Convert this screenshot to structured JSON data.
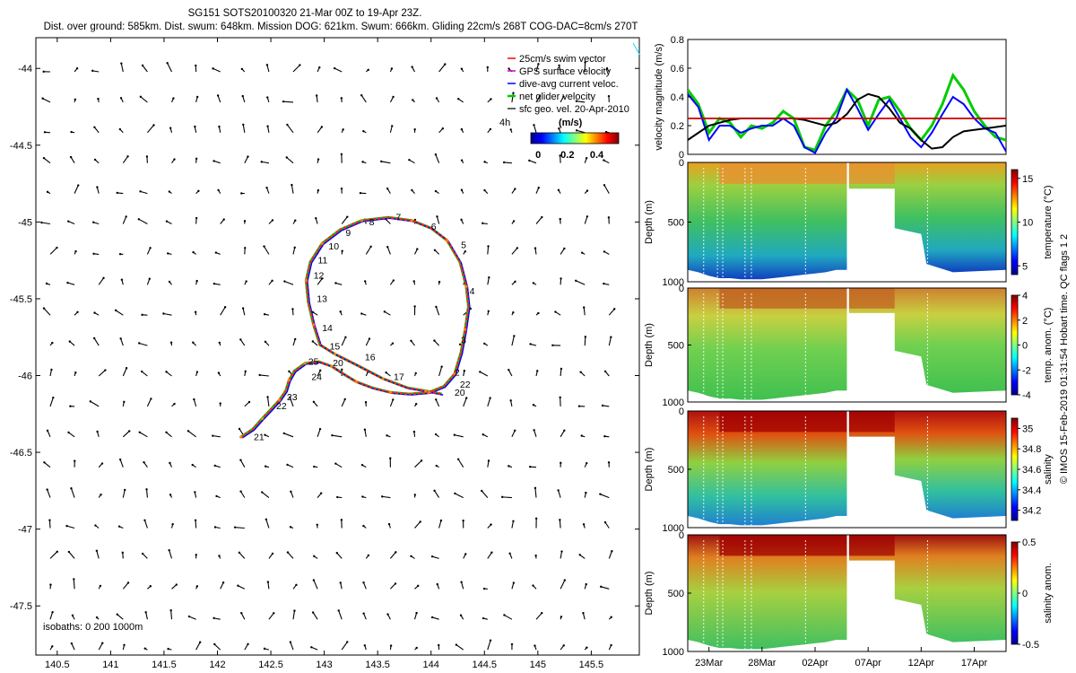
{
  "title": {
    "line1": "SG151 SOTS20100320 21-Mar 00Z to 19-Apr 23Z.",
    "line2": "Dist. over ground: 585km. Dist. swum: 648km. Mission DOG: 621km. Swum: 666km. Gliding 22cm/s 268T COG-DAC=8cm/s 270T"
  },
  "colors": {
    "swim_vector": "#ff0000",
    "gps_velocity": "#cc00cc",
    "dac_velocity": "#0000ff",
    "net_velocity": "#00cc00",
    "geo_velocity": "#000000",
    "track": "#ff2020",
    "speed_line": "#cc0000"
  },
  "chart_data": [
    {
      "type": "scatter",
      "name": "map",
      "xlim": [
        140.3,
        145.95
      ],
      "ylim": [
        -47.82,
        -43.8
      ],
      "xticks": [
        "140.5",
        "141",
        "141.5",
        "142",
        "142.5",
        "143",
        "143.5",
        "144",
        "144.5",
        "145",
        "145.5"
      ],
      "xtick_values": [
        140.5,
        141,
        141.5,
        142,
        142.5,
        143,
        143.5,
        144,
        144.5,
        145,
        145.5
      ],
      "yticks": [
        "-44",
        "-44.5",
        "-45",
        "-45.5",
        "-46",
        "-46.5",
        "-47",
        "-47.5"
      ],
      "ytick_values": [
        -44,
        -44.5,
        -45,
        -45.5,
        -46,
        -46.5,
        -47,
        -47.5
      ],
      "legend": {
        "swim": "25cm/s swim vector",
        "gps": "GPS surface velocity",
        "dac": "dive-avg current veloc.",
        "net": "net glider velocity",
        "geo": "sfc geo. vel. 20-Apr-2010"
      },
      "colorbar": {
        "label": "(m/s)",
        "ticks": [
          "0",
          "0.2",
          "0.4"
        ],
        "tick_values": [
          0,
          0.2,
          0.4
        ],
        "range": [
          -0.05,
          0.55
        ]
      },
      "scale_label": "4h",
      "isobath_label": "isobaths: 0   200  1000m",
      "track": [
        [
          142.22,
          -46.4
        ],
        [
          142.33,
          -46.35
        ],
        [
          142.42,
          -46.28
        ],
        [
          142.5,
          -46.22
        ],
        [
          142.58,
          -46.16
        ],
        [
          142.64,
          -46.1
        ],
        [
          142.67,
          -46.03
        ],
        [
          142.72,
          -45.97
        ],
        [
          142.82,
          -45.92
        ],
        [
          142.95,
          -45.91
        ],
        [
          143.07,
          -45.94
        ],
        [
          143.18,
          -45.99
        ],
        [
          143.3,
          -46.04
        ],
        [
          143.45,
          -46.08
        ],
        [
          143.62,
          -46.11
        ],
        [
          143.8,
          -46.12
        ],
        [
          143.98,
          -46.11
        ],
        [
          144.12,
          -46.07
        ],
        [
          144.22,
          -45.99
        ],
        [
          144.28,
          -45.85
        ],
        [
          144.32,
          -45.7
        ],
        [
          144.35,
          -45.55
        ],
        [
          144.33,
          -45.42
        ],
        [
          144.27,
          -45.26
        ],
        [
          144.15,
          -45.12
        ],
        [
          144.0,
          -45.04
        ],
        [
          143.82,
          -44.99
        ],
        [
          143.6,
          -44.97
        ],
        [
          143.35,
          -44.99
        ],
        [
          143.15,
          -45.05
        ],
        [
          142.98,
          -45.14
        ],
        [
          142.87,
          -45.26
        ],
        [
          142.83,
          -45.38
        ],
        [
          142.85,
          -45.52
        ],
        [
          142.9,
          -45.67
        ],
        [
          142.96,
          -45.8
        ],
        [
          143.1,
          -45.86
        ],
        [
          143.3,
          -45.93
        ],
        [
          143.55,
          -46.02
        ],
        [
          143.78,
          -46.08
        ],
        [
          143.95,
          -46.1
        ],
        [
          144.1,
          -46.12
        ]
      ],
      "waypoints": [
        {
          "label": "2",
          "x": 144.22,
          "y": -46.0
        },
        {
          "label": "3",
          "x": 144.28,
          "y": -45.79
        },
        {
          "label": "4",
          "x": 144.36,
          "y": -45.47
        },
        {
          "label": "5",
          "x": 144.28,
          "y": -45.17
        },
        {
          "label": "6",
          "x": 144.0,
          "y": -45.05
        },
        {
          "label": "7",
          "x": 143.67,
          "y": -44.99
        },
        {
          "label": "8",
          "x": 143.42,
          "y": -45.02
        },
        {
          "label": "9",
          "x": 143.2,
          "y": -45.09
        },
        {
          "label": "10",
          "x": 143.04,
          "y": -45.18
        },
        {
          "label": "11",
          "x": 142.94,
          "y": -45.27
        },
        {
          "label": "12",
          "x": 142.9,
          "y": -45.37
        },
        {
          "label": "13",
          "x": 142.93,
          "y": -45.52
        },
        {
          "label": "14",
          "x": 142.98,
          "y": -45.71
        },
        {
          "label": "15",
          "x": 143.05,
          "y": -45.83
        },
        {
          "label": "16",
          "x": 143.38,
          "y": -45.9
        },
        {
          "label": "17",
          "x": 143.65,
          "y": -46.03
        },
        {
          "label": "20",
          "x": 143.08,
          "y": -45.94
        },
        {
          "label": "21",
          "x": 142.34,
          "y": -46.42
        },
        {
          "label": "22",
          "x": 142.55,
          "y": -46.22
        },
        {
          "label": "22",
          "x": 144.27,
          "y": -46.08
        },
        {
          "label": "23",
          "x": 142.65,
          "y": -46.16
        },
        {
          "label": "24",
          "x": 142.88,
          "y": -46.03
        },
        {
          "label": "25",
          "x": 142.85,
          "y": -45.93
        },
        {
          "label": "20",
          "x": 144.22,
          "y": -46.13
        }
      ]
    },
    {
      "type": "line",
      "name": "velocity",
      "ylabel": "velocity magnitude (m/s)",
      "ylim": [
        0,
        0.8
      ],
      "yticks": [
        "0",
        "0.2",
        "0.4",
        "0.6",
        "0.8"
      ],
      "ytick_values": [
        0,
        0.2,
        0.4,
        0.6,
        0.8
      ],
      "x_days": [
        0,
        1,
        2,
        3,
        4,
        5,
        6,
        7,
        8,
        9,
        10,
        11,
        12,
        13,
        14,
        15,
        16,
        17,
        18,
        19,
        20,
        21,
        22,
        23,
        24,
        25,
        26,
        27,
        28,
        29,
        30
      ],
      "xlim_days": [
        0,
        30
      ],
      "horizontal_line": 0.25,
      "series": [
        {
          "name": "net glider velocity",
          "values": [
            0.45,
            0.35,
            0.15,
            0.25,
            0.22,
            0.12,
            0.2,
            0.18,
            0.22,
            0.3,
            0.25,
            0.05,
            0.03,
            0.2,
            0.3,
            0.45,
            0.38,
            0.2,
            0.38,
            0.4,
            0.3,
            0.18,
            0.1,
            0.2,
            0.35,
            0.55,
            0.45,
            0.3,
            0.2,
            0.12,
            0.1
          ]
        },
        {
          "name": "dive-avg current veloc.",
          "values": [
            0.42,
            0.33,
            0.1,
            0.2,
            0.2,
            0.15,
            0.18,
            0.2,
            0.2,
            0.25,
            0.2,
            0.05,
            0.01,
            0.15,
            0.25,
            0.45,
            0.32,
            0.17,
            0.28,
            0.38,
            0.25,
            0.12,
            0.05,
            0.15,
            0.28,
            0.4,
            0.35,
            0.25,
            0.18,
            0.15,
            0.02
          ]
        },
        {
          "name": "sfc geo. vel. 20-Apr-2010",
          "values": [
            0.1,
            0.15,
            0.2,
            0.22,
            0.24,
            0.25,
            0.25,
            0.25,
            0.25,
            0.25,
            0.25,
            0.24,
            0.22,
            0.2,
            0.22,
            0.28,
            0.38,
            0.42,
            0.4,
            0.32,
            0.22,
            0.18,
            0.1,
            0.04,
            0.05,
            0.12,
            0.16,
            0.17,
            0.18,
            0.19,
            0.2
          ]
        }
      ]
    },
    {
      "type": "heatmap",
      "name": "temperature",
      "ylabel": "Depth (m)",
      "yticks": [
        "0",
        "500",
        "1000"
      ],
      "ytick_values": [
        0,
        500,
        1000
      ],
      "ylim": [
        0,
        1000
      ],
      "colorbar_label": "temperature (°C)",
      "colorbar_ticks": [
        "15",
        "10",
        "5"
      ],
      "colorbar_tick_values": [
        15,
        10,
        5
      ],
      "colorbar_range": [
        4,
        16
      ]
    },
    {
      "type": "heatmap",
      "name": "temperature anomaly",
      "ylabel": "Depth (m)",
      "yticks": [
        "0",
        "500",
        "1000"
      ],
      "ytick_values": [
        0,
        500,
        1000
      ],
      "ylim": [
        0,
        1000
      ],
      "colorbar_label": "temp. anom. (°C)",
      "colorbar_ticks": [
        "4",
        "2",
        "0",
        "-2",
        "-4"
      ],
      "colorbar_tick_values": [
        4,
        2,
        0,
        -2,
        -4
      ],
      "colorbar_range": [
        -4,
        4
      ]
    },
    {
      "type": "heatmap",
      "name": "salinity",
      "ylabel": "Depth (m)",
      "yticks": [
        "0",
        "500",
        "1000"
      ],
      "ytick_values": [
        0,
        500,
        1000
      ],
      "ylim": [
        0,
        1000
      ],
      "colorbar_label": "salinity",
      "colorbar_ticks": [
        "35",
        "34.8",
        "34.6",
        "34.4",
        "34.2"
      ],
      "colorbar_tick_values": [
        35,
        34.8,
        34.6,
        34.4,
        34.2
      ],
      "colorbar_range": [
        34.1,
        35.1
      ]
    },
    {
      "type": "heatmap",
      "name": "salinity anomaly",
      "ylabel": "Depth (m)",
      "yticks": [
        "0",
        "500",
        "1000"
      ],
      "ytick_values": [
        0,
        500,
        1000
      ],
      "ylim": [
        0,
        1000
      ],
      "colorbar_label": "salinity anom.",
      "colorbar_ticks": [
        "0.5",
        "0",
        "-0.5"
      ],
      "colorbar_tick_values": [
        0.5,
        0,
        -0.5
      ],
      "colorbar_range": [
        -0.5,
        0.5
      ],
      "xticks": [
        "23Mar",
        "28Mar",
        "02Apr",
        "07Apr",
        "12Apr",
        "17Apr"
      ],
      "xtick_days": [
        2,
        7,
        12,
        17,
        22,
        27
      ]
    }
  ],
  "footer": {
    "credit": "© IMOS 15-Feb-2019 01:31:54 Hobart time. QC flags 1  2"
  }
}
